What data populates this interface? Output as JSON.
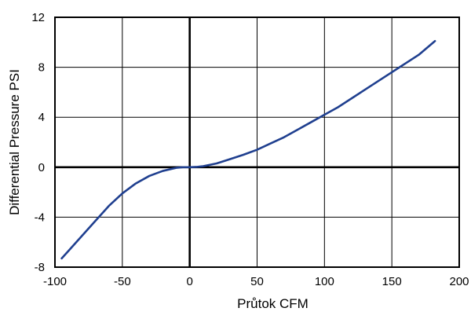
{
  "chart_data": {
    "type": "line",
    "xlabel": "Průtok CFM",
    "ylabel": "Differential Pressure PSI",
    "xlim": [
      -100,
      200
    ],
    "ylim": [
      -8,
      12
    ],
    "x_ticks": [
      -100,
      -50,
      0,
      50,
      100,
      150,
      200
    ],
    "y_ticks": [
      -8,
      -4,
      0,
      4,
      8,
      12
    ],
    "x_tick_labels": [
      "-100",
      "-50",
      "0",
      "50",
      "100",
      "150",
      "200"
    ],
    "y_tick_labels": [
      "-8",
      "-4",
      "0",
      "4",
      "8",
      "12"
    ],
    "grid": true,
    "series": [
      {
        "color": "#1f3f8f",
        "x": [
          -95,
          -90,
          -80,
          -70,
          -60,
          -50,
          -40,
          -30,
          -20,
          -10,
          -5,
          0,
          5,
          10,
          20,
          30,
          40,
          50,
          60,
          70,
          80,
          90,
          100,
          110,
          120,
          130,
          140,
          150,
          160,
          170,
          182
        ],
        "y": [
          -7.3,
          -6.7,
          -5.5,
          -4.3,
          -3.1,
          -2.1,
          -1.3,
          -0.7,
          -0.3,
          -0.05,
          0.0,
          0.0,
          0.02,
          0.08,
          0.3,
          0.65,
          1.0,
          1.4,
          1.9,
          2.4,
          3.0,
          3.6,
          4.2,
          4.8,
          5.5,
          6.2,
          6.9,
          7.6,
          8.3,
          9.0,
          10.1
        ]
      }
    ]
  }
}
